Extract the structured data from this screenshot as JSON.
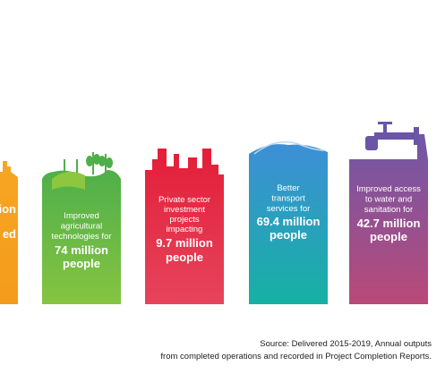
{
  "panels": [
    {
      "text": [],
      "highlight": [
        "ion",
        "ed"
      ]
    },
    {
      "text": [
        "Improved",
        "agricultural",
        "technologies for"
      ],
      "highlight": [
        "74 million",
        "people"
      ]
    },
    {
      "text": [
        "Private sector",
        "investment",
        "projects",
        "impacting"
      ],
      "highlight": [
        "9.7 million",
        "people"
      ]
    },
    {
      "text": [
        "Better",
        "transport",
        "services for"
      ],
      "highlight": [
        "69.4 million",
        "people"
      ]
    },
    {
      "text": [
        "Improved access",
        "to water and",
        "sanitation for"
      ],
      "highlight": [
        "42.7 million",
        "people"
      ]
    }
  ],
  "source": [
    "Source: Delivered 2015-2019, Annual outputs",
    "from completed operations and recorded in Project Completion Reports."
  ]
}
